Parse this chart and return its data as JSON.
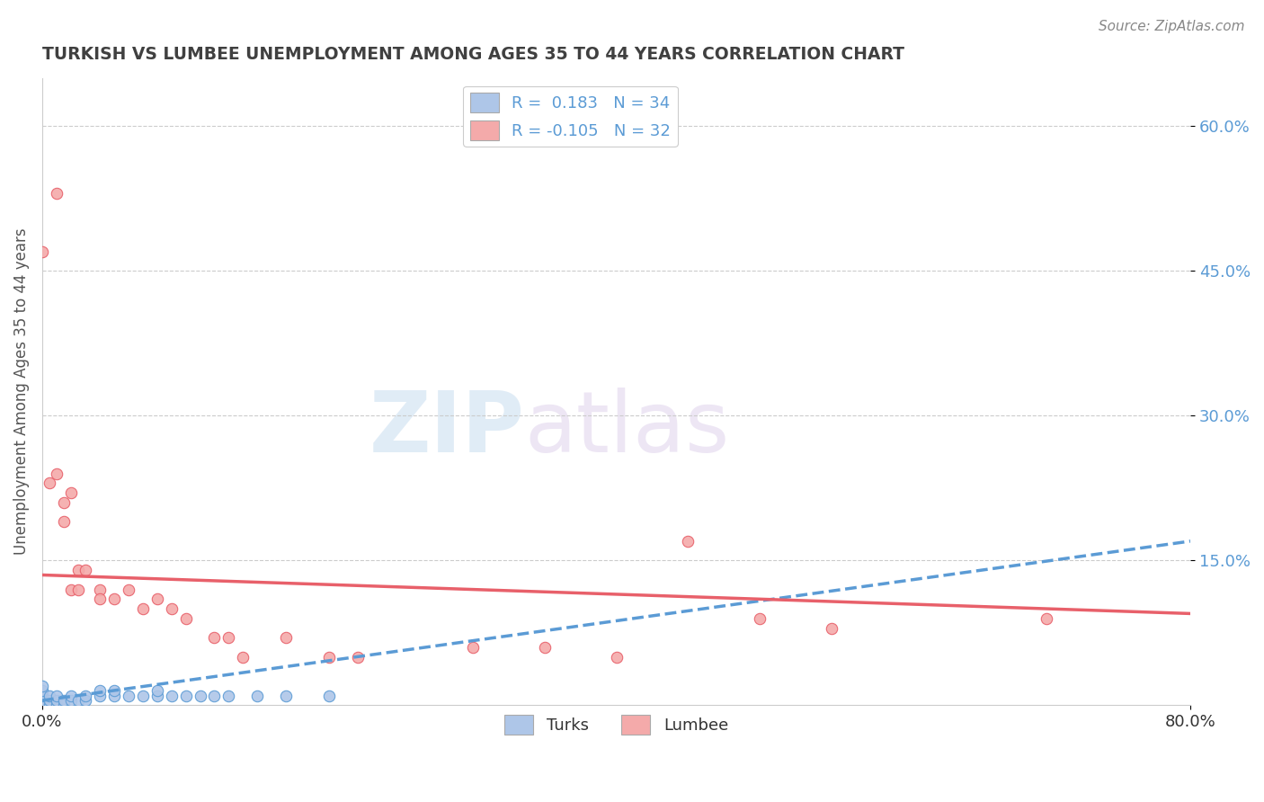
{
  "title": "TURKISH VS LUMBEE UNEMPLOYMENT AMONG AGES 35 TO 44 YEARS CORRELATION CHART",
  "source": "Source: ZipAtlas.com",
  "ylabel": "Unemployment Among Ages 35 to 44 years",
  "xlim": [
    0.0,
    0.8
  ],
  "ylim": [
    0.0,
    0.65
  ],
  "xticks": [
    0.0,
    0.8
  ],
  "xticklabels": [
    "0.0%",
    "80.0%"
  ],
  "ytick_positions": [
    0.15,
    0.3,
    0.45,
    0.6
  ],
  "ytick_labels": [
    "15.0%",
    "30.0%",
    "45.0%",
    "60.0%"
  ],
  "watermark_zip": "ZIP",
  "watermark_atlas": "atlas",
  "legend_r1": "R =  0.183   N = 34",
  "legend_r2": "R = -0.105   N = 32",
  "turks_color": "#aec6e8",
  "lumbee_color": "#f4aaaa",
  "turks_line_color": "#5b9bd5",
  "lumbee_line_color": "#e8606a",
  "turks_scatter": [
    [
      0.0,
      0.0
    ],
    [
      0.0,
      0.005
    ],
    [
      0.0,
      0.01
    ],
    [
      0.0,
      0.015
    ],
    [
      0.0,
      0.02
    ],
    [
      0.005,
      0.0
    ],
    [
      0.005,
      0.005
    ],
    [
      0.005,
      0.01
    ],
    [
      0.01,
      0.0
    ],
    [
      0.01,
      0.005
    ],
    [
      0.01,
      0.01
    ],
    [
      0.015,
      0.0
    ],
    [
      0.015,
      0.005
    ],
    [
      0.02,
      0.005
    ],
    [
      0.02,
      0.01
    ],
    [
      0.025,
      0.005
    ],
    [
      0.03,
      0.005
    ],
    [
      0.03,
      0.01
    ],
    [
      0.04,
      0.01
    ],
    [
      0.04,
      0.015
    ],
    [
      0.05,
      0.01
    ],
    [
      0.05,
      0.015
    ],
    [
      0.06,
      0.01
    ],
    [
      0.07,
      0.01
    ],
    [
      0.08,
      0.01
    ],
    [
      0.08,
      0.015
    ],
    [
      0.09,
      0.01
    ],
    [
      0.1,
      0.01
    ],
    [
      0.11,
      0.01
    ],
    [
      0.12,
      0.01
    ],
    [
      0.13,
      0.01
    ],
    [
      0.15,
      0.01
    ],
    [
      0.17,
      0.01
    ],
    [
      0.2,
      0.01
    ]
  ],
  "lumbee_scatter": [
    [
      0.0,
      0.47
    ],
    [
      0.01,
      0.53
    ],
    [
      0.005,
      0.23
    ],
    [
      0.01,
      0.24
    ],
    [
      0.015,
      0.21
    ],
    [
      0.015,
      0.19
    ],
    [
      0.02,
      0.22
    ],
    [
      0.02,
      0.12
    ],
    [
      0.025,
      0.14
    ],
    [
      0.025,
      0.12
    ],
    [
      0.03,
      0.14
    ],
    [
      0.04,
      0.12
    ],
    [
      0.04,
      0.11
    ],
    [
      0.05,
      0.11
    ],
    [
      0.06,
      0.12
    ],
    [
      0.07,
      0.1
    ],
    [
      0.08,
      0.11
    ],
    [
      0.09,
      0.1
    ],
    [
      0.1,
      0.09
    ],
    [
      0.12,
      0.07
    ],
    [
      0.13,
      0.07
    ],
    [
      0.14,
      0.05
    ],
    [
      0.17,
      0.07
    ],
    [
      0.2,
      0.05
    ],
    [
      0.22,
      0.05
    ],
    [
      0.3,
      0.06
    ],
    [
      0.35,
      0.06
    ],
    [
      0.4,
      0.05
    ],
    [
      0.45,
      0.17
    ],
    [
      0.5,
      0.09
    ],
    [
      0.55,
      0.08
    ],
    [
      0.7,
      0.09
    ]
  ],
  "turks_trend": [
    0.0,
    0.8,
    0.005,
    0.17
  ],
  "lumbee_trend": [
    0.0,
    0.8,
    0.135,
    0.095
  ],
  "grid_color": "#cccccc",
  "background_color": "#ffffff",
  "title_color": "#404040",
  "axis_label_color": "#555555"
}
